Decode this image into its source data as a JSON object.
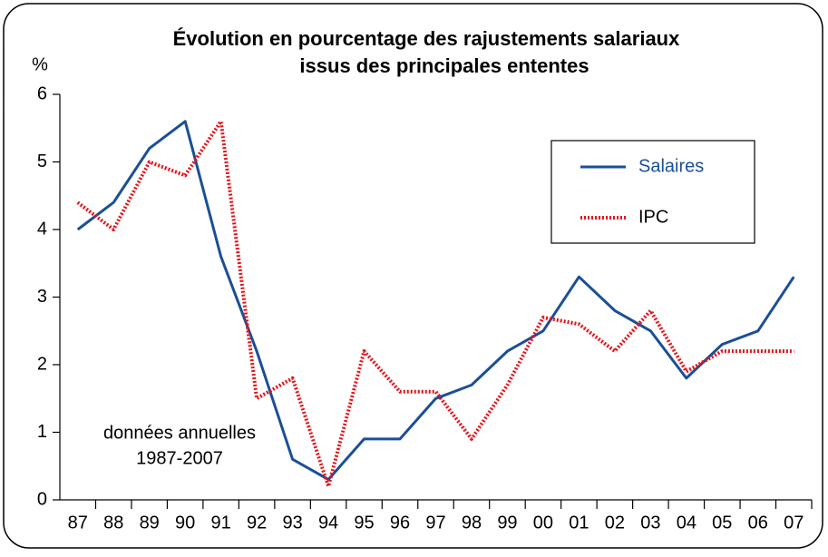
{
  "chart_data": {
    "type": "line",
    "title": [
      "Évolution en pourcentage des rajustements salariaux",
      "issus des principales ententes"
    ],
    "y_label": "%",
    "annotation": [
      "données annuelles",
      "1987-2007"
    ],
    "categories": [
      "87",
      "88",
      "89",
      "90",
      "91",
      "92",
      "93",
      "94",
      "95",
      "96",
      "97",
      "98",
      "99",
      "00",
      "01",
      "02",
      "03",
      "04",
      "05",
      "06",
      "07"
    ],
    "series": [
      {
        "name": "Salaires",
        "color": "#1a4f98",
        "dash": false,
        "values": [
          4.0,
          4.4,
          5.2,
          5.6,
          3.6,
          2.2,
          0.6,
          0.3,
          0.9,
          0.9,
          1.5,
          1.7,
          2.2,
          2.5,
          3.3,
          2.8,
          2.5,
          1.8,
          2.3,
          2.5,
          3.3
        ]
      },
      {
        "name": "IPC",
        "color": "#e3141b",
        "dash": true,
        "values": [
          4.4,
          4.0,
          5.0,
          4.8,
          5.6,
          1.5,
          1.8,
          0.2,
          2.2,
          1.6,
          1.6,
          0.9,
          1.7,
          2.7,
          2.6,
          2.2,
          2.8,
          1.9,
          2.2,
          2.2,
          2.2
        ]
      }
    ],
    "ylim": [
      0,
      6
    ],
    "yticks": [
      0,
      1,
      2,
      3,
      4,
      5,
      6
    ],
    "grid": false,
    "legend": "upper right"
  }
}
